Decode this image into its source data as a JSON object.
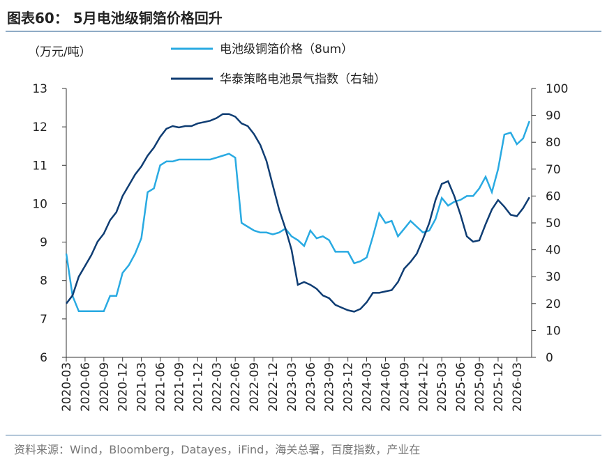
{
  "chart_data": {
    "type": "line",
    "title": "图表60： 5月电池级铜箔价格回升",
    "y_label": "（万元/吨）",
    "source": "资料来源：Wind，Bloomberg，Datayes，iFind，海关总署，百度指数，产业在",
    "categories": [
      "2020-03",
      null,
      null,
      "2020-06",
      null,
      null,
      "2020-09",
      null,
      null,
      "2020-12",
      null,
      null,
      "2021-03",
      null,
      null,
      "2021-06",
      null,
      null,
      "2021-09",
      null,
      null,
      "2021-12",
      null,
      null,
      "2022-03",
      null,
      null,
      "2022-06",
      null,
      null,
      "2022-09",
      null,
      null,
      "2022-12",
      null,
      null,
      "2023-03",
      null,
      null,
      "2023-06",
      null,
      null,
      "2023-09",
      null,
      null,
      "2023-12",
      null,
      null,
      "2024-03",
      null,
      null,
      "2024-06",
      null,
      null,
      "2024-09",
      null,
      null,
      "2024-12",
      null,
      null,
      "2025-03",
      null,
      null,
      "2025-06",
      null,
      null,
      "2025-09",
      null,
      null,
      "2025-12",
      null,
      null,
      "2026-03",
      null,
      null
    ],
    "series": [
      {
        "name": "电池级铜箔价格（8um）",
        "color": "#29aae2",
        "axis": "y",
        "values": [
          8.7,
          7.6,
          7.2,
          7.2,
          7.2,
          7.2,
          7.2,
          7.6,
          7.6,
          8.2,
          8.4,
          8.7,
          9.1,
          10.3,
          10.4,
          11.0,
          11.1,
          11.1,
          11.15,
          11.15,
          11.15,
          11.15,
          11.15,
          11.15,
          11.2,
          11.25,
          11.3,
          11.2,
          9.5,
          9.4,
          9.3,
          9.25,
          9.25,
          9.2,
          9.25,
          9.35,
          9.15,
          9.05,
          8.9,
          9.3,
          9.1,
          9.15,
          9.05,
          8.75,
          8.75,
          8.75,
          8.45,
          8.5,
          8.6,
          9.15,
          9.75,
          9.5,
          9.55,
          9.15,
          9.35,
          9.55,
          9.4,
          9.25,
          9.3,
          9.6,
          10.15,
          9.95,
          10.05,
          10.1,
          10.2,
          10.2,
          10.4,
          10.7,
          10.3,
          10.9,
          11.8,
          11.85,
          11.55,
          11.7,
          12.15
        ]
      },
      {
        "name": "华泰策略电池景气指数（右轴）",
        "color": "#0f3d73",
        "axis": "y2",
        "values": [
          20,
          23,
          30,
          34,
          38,
          43,
          46,
          51,
          54,
          60,
          64,
          68,
          71,
          75,
          78,
          82,
          85,
          86,
          85.5,
          86,
          86,
          87,
          87.5,
          88,
          89,
          90.5,
          90.5,
          89.5,
          87,
          86,
          83,
          79,
          73,
          64,
          55,
          48,
          40,
          27,
          28,
          27,
          25.5,
          23,
          22,
          19.5,
          18.5,
          17.5,
          17,
          18,
          20.5,
          24,
          24,
          24.5,
          25,
          28,
          33,
          35.5,
          38.5,
          44,
          50,
          58.5,
          64.5,
          65.5,
          60,
          53,
          45,
          43,
          43.5,
          49.5,
          55,
          58.5,
          56,
          53,
          52.5,
          55.5,
          59.5
        ]
      }
    ],
    "ylim": [
      6,
      13
    ],
    "yticks": [
      6,
      7,
      8,
      9,
      10,
      11,
      12,
      13
    ],
    "y2lim": [
      0,
      100
    ],
    "y2ticks": [
      0,
      10,
      20,
      30,
      40,
      50,
      60,
      70,
      80,
      90,
      100
    ]
  }
}
